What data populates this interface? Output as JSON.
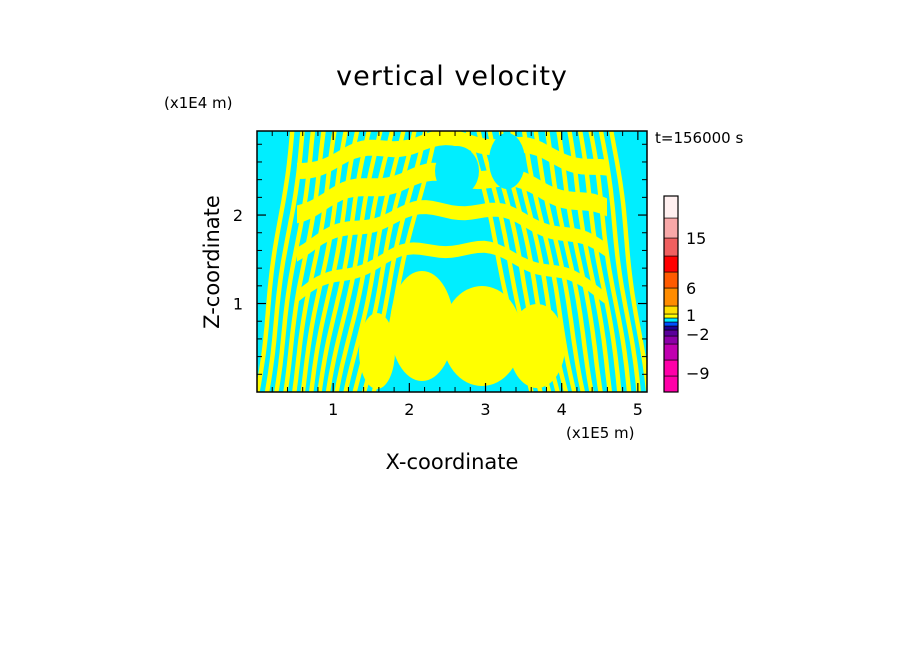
{
  "chart_data": {
    "type": "heatmap",
    "title": "vertical velocity",
    "xlabel": "X-coordinate",
    "ylabel": "Z-coordinate",
    "x_unit": "(x1E5 m)",
    "y_unit": "(x1E4 m)",
    "time_label": "t=156000 s",
    "x_ticks": [
      "1",
      "2",
      "3",
      "4",
      "5"
    ],
    "y_ticks": [
      "1",
      "2"
    ],
    "xlim": [
      0.0,
      5.12
    ],
    "ylim": [
      0.0,
      2.95
    ],
    "x_tick_values": [
      1,
      2,
      3,
      4,
      5
    ],
    "y_tick_values": [
      1,
      2
    ],
    "grid": false,
    "field_colors": {
      "positive_small": "#ffff00",
      "negative_small": "#00eeff"
    },
    "colorbar": {
      "labels": [
        "15",
        "6",
        "1",
        "-2",
        "-9"
      ],
      "label_values": [
        15,
        6,
        1,
        -2,
        -9
      ],
      "bands": [
        {
          "color": "#ff00a8"
        },
        {
          "color": "#ff00a8"
        },
        {
          "color": "#c000b0"
        },
        {
          "color": "#8c00a8"
        },
        {
          "color": "#5a009a"
        },
        {
          "color": "#1e0090"
        },
        {
          "color": "#0050ff"
        },
        {
          "color": "#00eeff"
        },
        {
          "color": "#ffff00"
        },
        {
          "color": "#ffe000"
        },
        {
          "color": "#ff8c00"
        },
        {
          "color": "#ff5a00"
        },
        {
          "color": "#ff0000"
        },
        {
          "color": "#f06060"
        },
        {
          "color": "#f8a8a8"
        },
        {
          "color": "#fff0f0"
        }
      ]
    }
  }
}
